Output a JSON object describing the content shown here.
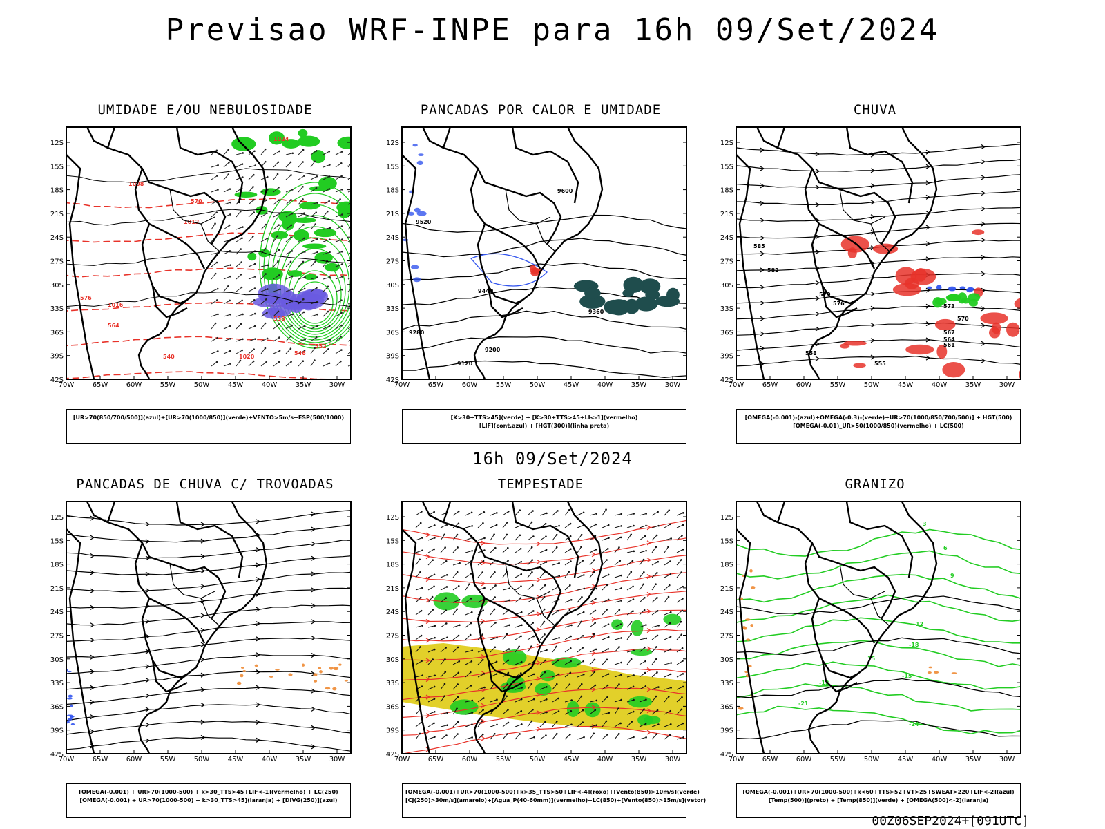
{
  "title": "Previsao WRF-INPE  para 16h 09/Set/2024",
  "subtitle": "16h 09/Set/2024",
  "footer": "00Z06SEP2024+[091UTC]",
  "axes": {
    "lat_ticks": [
      "12S",
      "15S",
      "18S",
      "21S",
      "24S",
      "27S",
      "30S",
      "33S",
      "36S",
      "39S",
      "42S"
    ],
    "lon_ticks": [
      "70W",
      "65W",
      "60W",
      "55W",
      "50W",
      "45W",
      "40W",
      "35W",
      "30W"
    ]
  },
  "panels": [
    {
      "title": "UMIDADE E/OU NEBULOSIDADE",
      "legend": [
        "[UR>70(850/700/500)](azul)+[UR>70(1000/850)](verde)+VENTO>5m/s+ESP(500/1000)"
      ],
      "labels": [
        "1008",
        "1012",
        "1016",
        "1020",
        "1024",
        "570",
        "576",
        "564",
        "558",
        "552",
        "546",
        "540"
      ]
    },
    {
      "title": "PANCADAS POR CALOR E UMIDADE",
      "legend": [
        "[K>30+TTS>45](verde) + [K>30+TTS>45+LI<-1](vermelho)",
        "[LIF](cont.azul) + [HGT(300)](linha preta)"
      ],
      "labels": [
        "9600",
        "9520",
        "9440",
        "9360",
        "9280",
        "9200",
        "9120"
      ]
    },
    {
      "title": "CHUVA",
      "legend": [
        "[OMEGA(-0.001)-(azul)+OMEGA(-0.3)-(verde)+UR>70(1000/850/700/500)] + HGT(500)",
        "[OMEGA(-0.01)_UR>50(1000/850)(vermelho) + LC(500)"
      ],
      "labels": [
        "585",
        "582",
        "579",
        "576",
        "573",
        "570",
        "567",
        "564",
        "561",
        "558",
        "555"
      ]
    },
    {
      "title": "PANCADAS DE CHUVA C/ TROVOADAS",
      "legend": [
        "[OMEGA(-0.001) + UR>70(1000-500) + k>30_TTS>45+LIF<-1](vermelho) + LC(250)",
        "[OMEGA(-0.001) + UR>70(1000-500) + k>30_TTS>45](laranja) + [DIVG(250)](azul)"
      ],
      "labels": []
    },
    {
      "title": "TEMPESTADE",
      "legend": [
        "[OMEGA(-0.001)+UR>70(1000-500)+k>35_TTS>50+LIF<-4](roxo)+[Vento(850)>10m/s](verde)",
        "[CJ(250)>30m/s](amarelo)+[Agua_P(40-60mm)](vermelho)+LC(850)+[Vento(850)>15m/s](vetor)"
      ],
      "labels": []
    },
    {
      "title": "GRANIZO",
      "legend": [
        "[OMEGA(-0.001)+UR>70(1000-500)+k<60+TTS>52+VT>25+SWEAT>220+LIF<-2](azul)",
        "[Temp(500)](preto) + [Temp(850)](verde) + [OMEGA(500)<-2](laranja)"
      ],
      "labels": [
        "-21",
        "-18",
        "-15",
        "-12",
        "-24",
        "3",
        "6",
        "9",
        "12",
        "15"
      ]
    }
  ],
  "colors": {
    "black": "#000000",
    "red": "#e8332a",
    "green": "#22cc22",
    "blue": "#3355ee",
    "purple": "#6a5ae0",
    "darkteal": "#1f4d4d",
    "yellow": "#e2d02a",
    "orange": "#ee8a33"
  }
}
